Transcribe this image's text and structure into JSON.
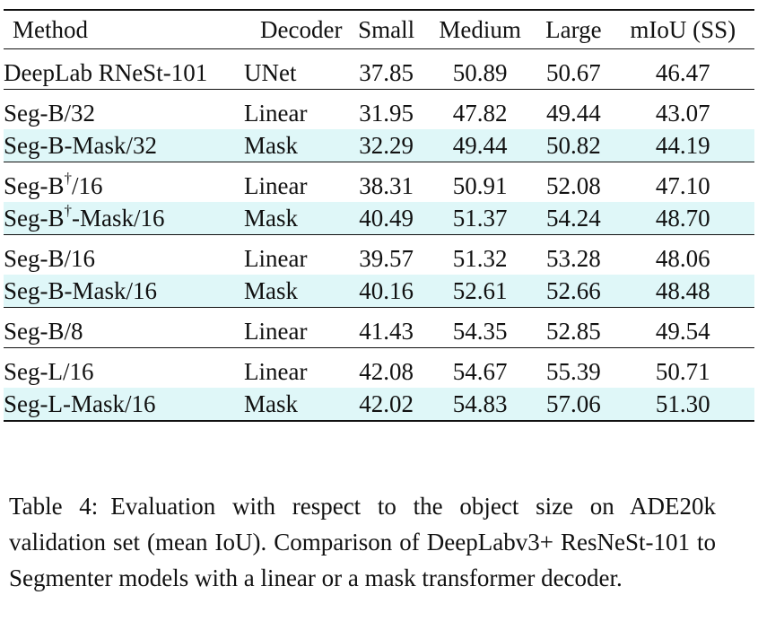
{
  "table": {
    "headers": [
      "Method",
      "Decoder",
      "Small",
      "Medium",
      "Large",
      "mIoU (SS)"
    ],
    "groups": [
      [
        {
          "method": "DeepLab RNeSt-101",
          "decoder": "UNet",
          "values": [
            "37.85",
            "50.89",
            "50.67",
            "46.47"
          ],
          "highlight": false
        }
      ],
      [
        {
          "method": "Seg-B/32",
          "decoder": "Linear",
          "values": [
            "31.95",
            "47.82",
            "49.44",
            "43.07"
          ],
          "highlight": false
        },
        {
          "method": "Seg-B-Mask/32",
          "decoder": "Mask",
          "values": [
            "32.29",
            "49.44",
            "50.82",
            "44.19"
          ],
          "highlight": true
        }
      ],
      [
        {
          "method_pre": "Seg-B",
          "method_sup": "†",
          "method_post": "/16",
          "decoder": "Linear",
          "values": [
            "38.31",
            "50.91",
            "52.08",
            "47.10"
          ],
          "highlight": false
        },
        {
          "method_pre": "Seg-B",
          "method_sup": "†",
          "method_post": "-Mask/16",
          "decoder": "Mask",
          "values": [
            "40.49",
            "51.37",
            "54.24",
            "48.70"
          ],
          "highlight": true
        }
      ],
      [
        {
          "method": "Seg-B/16",
          "decoder": "Linear",
          "values": [
            "39.57",
            "51.32",
            "53.28",
            "48.06"
          ],
          "highlight": false
        },
        {
          "method": "Seg-B-Mask/16",
          "decoder": "Mask",
          "values": [
            "40.16",
            "52.61",
            "52.66",
            "48.48"
          ],
          "highlight": true
        }
      ],
      [
        {
          "method": "Seg-B/8",
          "decoder": "Linear",
          "values": [
            "41.43",
            "54.35",
            "52.85",
            "49.54"
          ],
          "highlight": false
        }
      ],
      [
        {
          "method": "Seg-L/16",
          "decoder": "Linear",
          "values": [
            "42.08",
            "54.67",
            "55.39",
            "50.71"
          ],
          "highlight": false
        },
        {
          "method": "Seg-L-Mask/16",
          "decoder": "Mask",
          "values": [
            "42.02",
            "54.83",
            "57.06",
            "51.30"
          ],
          "highlight": true
        }
      ]
    ]
  },
  "caption": {
    "label": "Table 4:",
    "text": "Evaluation with respect to the object size on ADE20k validation set (mean IoU). Comparison of DeepLabv3+ ResNeSt-101 to Segmenter models with a linear or a mask transformer decoder."
  },
  "colors": {
    "highlight_row": "#dff7f8",
    "rule": "#111111"
  }
}
